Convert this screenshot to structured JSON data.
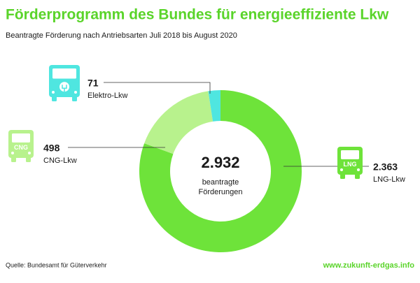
{
  "chart_data": {
    "type": "donut",
    "title": "Förderprogramm des Bundes für energieeffiziente Lkw",
    "subtitle": "Beantragte Förderung nach Antriebsarten Juli 2018 bis August 2020",
    "categories": [
      "LNG-Lkw",
      "CNG-Lkw",
      "Elektro-Lkw"
    ],
    "values": [
      2363,
      498,
      71
    ],
    "value_labels": [
      "2.363",
      "498",
      "71"
    ],
    "colors": [
      "#6ee33a",
      "#b8f28d",
      "#4fe6e0"
    ],
    "total_label": "2.932",
    "center_text": [
      "beantragte",
      "Förderungen"
    ],
    "icon_labels": [
      "LNG",
      "CNG"
    ],
    "source": "Quelle: Bundesamt für Güterverkehr",
    "url": "www.zukunft-erdgas.info"
  }
}
